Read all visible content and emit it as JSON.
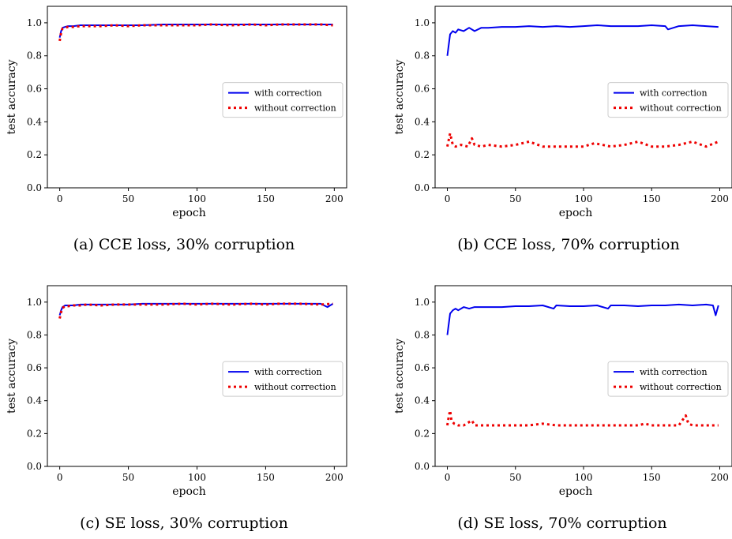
{
  "chart_data": [
    {
      "type": "line",
      "caption": "(a) CCE loss, 30% corruption",
      "xlabel": "epoch",
      "ylabel": "test accuracy",
      "xlim": [
        -9,
        209
      ],
      "ylim": [
        0.0,
        1.1
      ],
      "xticks": [
        0,
        50,
        100,
        150,
        200
      ],
      "yticks": [
        0.0,
        0.2,
        0.4,
        0.6,
        0.8,
        1.0
      ],
      "grid": false,
      "legend_position": "center-right",
      "series": [
        {
          "name": "with correction",
          "color": "#0000ee",
          "style": "solid",
          "x": [
            0,
            1,
            2,
            4,
            6,
            10,
            15,
            20,
            30,
            40,
            50,
            60,
            75,
            90,
            100,
            110,
            125,
            140,
            150,
            160,
            175,
            190,
            199
          ],
          "y": [
            0.91,
            0.95,
            0.97,
            0.975,
            0.98,
            0.98,
            0.985,
            0.985,
            0.985,
            0.985,
            0.985,
            0.985,
            0.99,
            0.99,
            0.99,
            0.99,
            0.99,
            0.99,
            0.99,
            0.99,
            0.99,
            0.99,
            0.99
          ]
        },
        {
          "name": "without correction",
          "color": "#ee0000",
          "style": "dotted",
          "x": [
            0,
            1,
            2,
            4,
            6,
            10,
            15,
            20,
            30,
            40,
            50,
            60,
            75,
            90,
            100,
            110,
            125,
            140,
            150,
            160,
            175,
            190,
            199
          ],
          "y": [
            0.89,
            0.94,
            0.965,
            0.97,
            0.975,
            0.975,
            0.98,
            0.98,
            0.98,
            0.985,
            0.98,
            0.985,
            0.985,
            0.985,
            0.985,
            0.99,
            0.985,
            0.99,
            0.985,
            0.99,
            0.99,
            0.99,
            0.985
          ]
        }
      ]
    },
    {
      "type": "line",
      "caption": "(b) CCE loss, 70% corruption",
      "xlabel": "epoch",
      "ylabel": "test accuracy",
      "xlim": [
        -9,
        209
      ],
      "ylim": [
        0.0,
        1.1
      ],
      "xticks": [
        0,
        50,
        100,
        150,
        200
      ],
      "yticks": [
        0.0,
        0.2,
        0.4,
        0.6,
        0.8,
        1.0
      ],
      "grid": false,
      "legend_position": "center-right",
      "series": [
        {
          "name": "with correction",
          "color": "#0000ee",
          "style": "solid",
          "x": [
            0,
            2,
            4,
            6,
            8,
            12,
            16,
            20,
            25,
            30,
            40,
            50,
            60,
            70,
            80,
            90,
            100,
            110,
            120,
            130,
            140,
            150,
            160,
            162,
            170,
            180,
            190,
            199
          ],
          "y": [
            0.8,
            0.93,
            0.95,
            0.94,
            0.96,
            0.95,
            0.97,
            0.95,
            0.97,
            0.97,
            0.975,
            0.975,
            0.98,
            0.975,
            0.98,
            0.975,
            0.98,
            0.985,
            0.98,
            0.98,
            0.98,
            0.985,
            0.98,
            0.96,
            0.98,
            0.985,
            0.98,
            0.975
          ]
        },
        {
          "name": "without correction",
          "color": "#ee0000",
          "style": "dotted",
          "x": [
            0,
            2,
            4,
            6,
            10,
            15,
            18,
            20,
            25,
            30,
            40,
            50,
            60,
            70,
            80,
            90,
            100,
            108,
            120,
            130,
            140,
            150,
            160,
            170,
            180,
            190,
            199
          ],
          "y": [
            0.25,
            0.33,
            0.26,
            0.25,
            0.26,
            0.25,
            0.3,
            0.26,
            0.25,
            0.26,
            0.25,
            0.26,
            0.28,
            0.25,
            0.25,
            0.25,
            0.25,
            0.27,
            0.25,
            0.26,
            0.28,
            0.25,
            0.25,
            0.26,
            0.28,
            0.25,
            0.28
          ]
        }
      ]
    },
    {
      "type": "line",
      "caption": "(c) SE loss, 30% corruption",
      "xlabel": "epoch",
      "ylabel": "test accuracy",
      "xlim": [
        -9,
        209
      ],
      "ylim": [
        0.0,
        1.1
      ],
      "xticks": [
        0,
        50,
        100,
        150,
        200
      ],
      "yticks": [
        0.0,
        0.2,
        0.4,
        0.6,
        0.8,
        1.0
      ],
      "grid": false,
      "legend_position": "center-right",
      "series": [
        {
          "name": "with correction",
          "color": "#0000ee",
          "style": "solid",
          "x": [
            0,
            1,
            2,
            4,
            6,
            10,
            15,
            20,
            30,
            40,
            50,
            60,
            75,
            90,
            100,
            110,
            125,
            140,
            150,
            160,
            175,
            190,
            195,
            199
          ],
          "y": [
            0.92,
            0.95,
            0.97,
            0.98,
            0.98,
            0.98,
            0.985,
            0.985,
            0.985,
            0.985,
            0.985,
            0.99,
            0.99,
            0.99,
            0.99,
            0.99,
            0.99,
            0.99,
            0.99,
            0.99,
            0.99,
            0.99,
            0.97,
            0.99
          ]
        },
        {
          "name": "without correction",
          "color": "#ee0000",
          "style": "dotted",
          "x": [
            0,
            1,
            2,
            4,
            6,
            10,
            15,
            20,
            30,
            40,
            50,
            60,
            75,
            90,
            100,
            110,
            125,
            140,
            150,
            160,
            175,
            190,
            199
          ],
          "y": [
            0.9,
            0.94,
            0.965,
            0.975,
            0.975,
            0.98,
            0.98,
            0.985,
            0.98,
            0.985,
            0.985,
            0.985,
            0.985,
            0.99,
            0.985,
            0.99,
            0.985,
            0.99,
            0.985,
            0.99,
            0.99,
            0.985,
            0.99
          ]
        }
      ]
    },
    {
      "type": "line",
      "caption": "(d) SE loss, 70% corruption",
      "xlabel": "epoch",
      "ylabel": "test accuracy",
      "xlim": [
        -9,
        209
      ],
      "ylim": [
        0.0,
        1.1
      ],
      "xticks": [
        0,
        50,
        100,
        150,
        200
      ],
      "yticks": [
        0.0,
        0.2,
        0.4,
        0.6,
        0.8,
        1.0
      ],
      "grid": false,
      "legend_position": "center-right",
      "series": [
        {
          "name": "with correction",
          "color": "#0000ee",
          "style": "solid",
          "x": [
            0,
            2,
            4,
            6,
            8,
            12,
            16,
            20,
            25,
            30,
            40,
            50,
            60,
            70,
            78,
            80,
            90,
            100,
            110,
            118,
            120,
            130,
            140,
            150,
            160,
            170,
            180,
            190,
            195,
            197,
            199
          ],
          "y": [
            0.8,
            0.93,
            0.95,
            0.96,
            0.95,
            0.97,
            0.96,
            0.97,
            0.97,
            0.97,
            0.97,
            0.975,
            0.975,
            0.98,
            0.96,
            0.98,
            0.975,
            0.975,
            0.98,
            0.96,
            0.98,
            0.98,
            0.975,
            0.98,
            0.98,
            0.985,
            0.98,
            0.985,
            0.98,
            0.92,
            0.98
          ]
        },
        {
          "name": "without correction",
          "color": "#ee0000",
          "style": "dotted",
          "x": [
            0,
            1,
            2,
            3,
            5,
            8,
            12,
            18,
            20,
            25,
            30,
            40,
            50,
            60,
            70,
            80,
            90,
            100,
            110,
            120,
            130,
            140,
            145,
            150,
            160,
            170,
            175,
            177,
            180,
            190,
            199
          ],
          "y": [
            0.25,
            0.3,
            0.34,
            0.28,
            0.26,
            0.25,
            0.25,
            0.28,
            0.25,
            0.25,
            0.25,
            0.25,
            0.25,
            0.25,
            0.26,
            0.25,
            0.25,
            0.25,
            0.25,
            0.25,
            0.25,
            0.25,
            0.26,
            0.25,
            0.25,
            0.25,
            0.31,
            0.26,
            0.25,
            0.25,
            0.25
          ]
        }
      ]
    }
  ]
}
